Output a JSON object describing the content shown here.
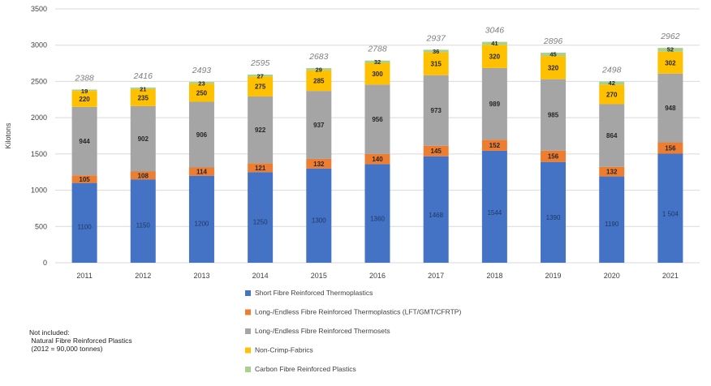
{
  "chart_data": {
    "type": "bar",
    "stacked": true,
    "ylabel": "Kilotons",
    "ylim": [
      0,
      3500
    ],
    "yticks": [
      0,
      500,
      1000,
      1500,
      2000,
      2500,
      3000,
      3500
    ],
    "grid": true,
    "legend_position": "bottom",
    "categories": [
      "2011",
      "2012",
      "2013",
      "2014",
      "2015",
      "2016",
      "2017",
      "2018",
      "2019",
      "2020",
      "2021"
    ],
    "series": [
      {
        "name": "Short Fibre Reinforced Thermoplastics",
        "color": "#4472C4",
        "values": [
          1100,
          1150,
          1200,
          1250,
          1300,
          1360,
          1468,
          1544,
          1390,
          1190,
          1504
        ],
        "labels": [
          "1100",
          "1150",
          "1200",
          "1250",
          "1300",
          "1360",
          "1468",
          "1544",
          "1390",
          "1190",
          "1 504"
        ]
      },
      {
        "name": "Long-/Endless Fibre Reinforced Thermoplastics (LFT/GMT/CFRTP)",
        "color": "#ED7D31",
        "values": [
          105,
          108,
          114,
          121,
          132,
          140,
          145,
          152,
          156,
          132,
          156
        ]
      },
      {
        "name": "Long-/Endless Fibre Reinforced Thermosets",
        "color": "#A5A5A5",
        "values": [
          944,
          902,
          906,
          922,
          937,
          956,
          973,
          989,
          985,
          864,
          948
        ]
      },
      {
        "name": "Non-Crimp-Fabrics",
        "color": "#FFC000",
        "values": [
          220,
          235,
          250,
          275,
          285,
          300,
          315,
          320,
          320,
          270,
          302
        ]
      },
      {
        "name": "Carbon Fibre Reinforced Plastics",
        "color": "#A9D18E",
        "values": [
          19,
          21,
          23,
          27,
          29,
          32,
          36,
          41,
          45,
          42,
          52
        ]
      }
    ],
    "totals": [
      2388,
      2416,
      2493,
      2595,
      2683,
      2788,
      2937,
      3046,
      2896,
      2498,
      2962
    ]
  },
  "note": {
    "lines": [
      "Not included:",
      " Natural Fibre Reinforced Plastics",
      " (2012 = 90,000 tonnes)"
    ]
  }
}
